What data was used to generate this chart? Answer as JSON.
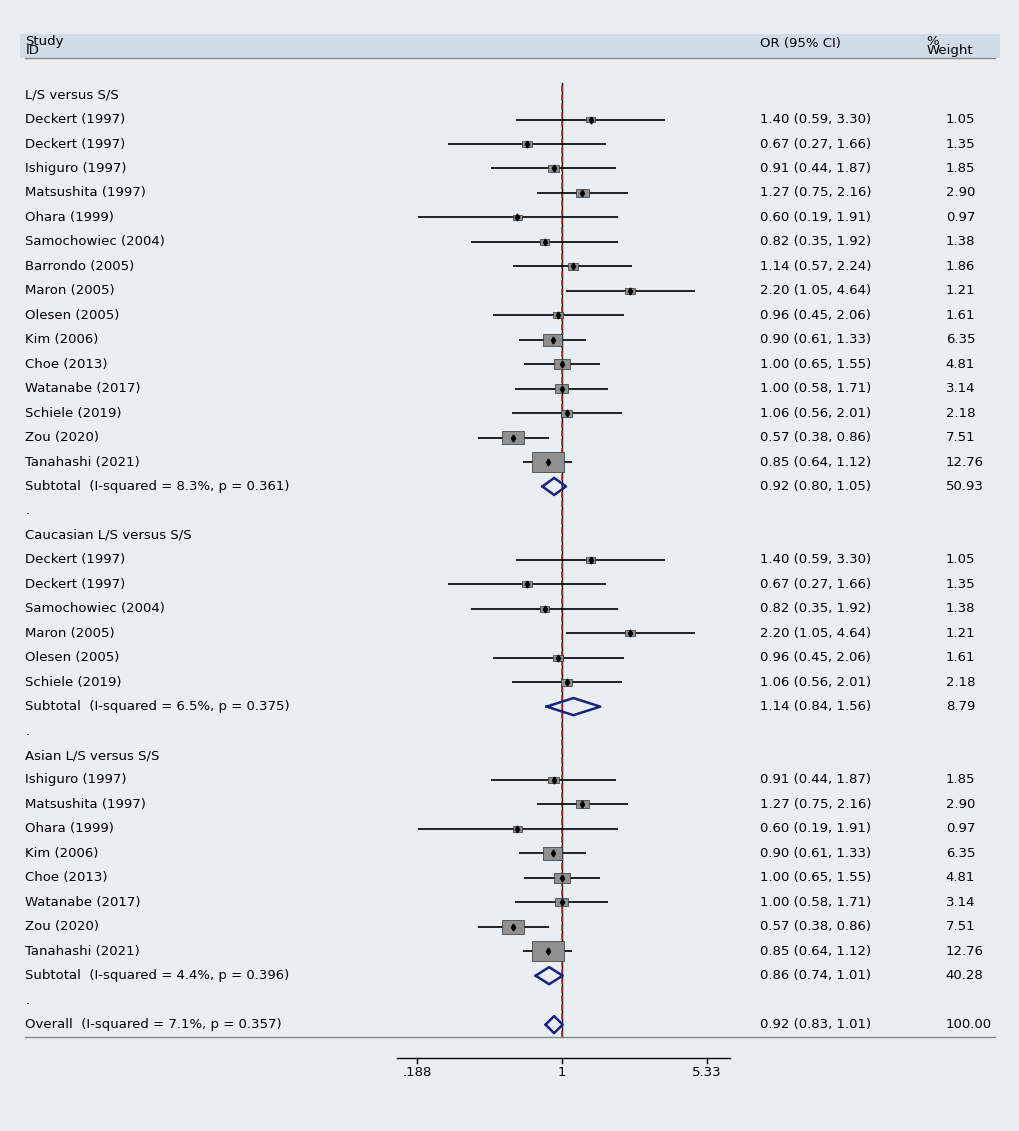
{
  "background_color": "#e8eef2",
  "sections": [
    {
      "header": "L/S versus S/S",
      "studies": [
        {
          "label": "Deckert (1997)",
          "or": 1.4,
          "ci_low": 0.59,
          "ci_high": 3.3,
          "weight": 1.05,
          "ci_str": "1.40 (0.59, 3.30)"
        },
        {
          "label": "Deckert (1997)",
          "or": 0.67,
          "ci_low": 0.27,
          "ci_high": 1.66,
          "weight": 1.35,
          "ci_str": "0.67 (0.27, 1.66)"
        },
        {
          "label": "Ishiguro (1997)",
          "or": 0.91,
          "ci_low": 0.44,
          "ci_high": 1.87,
          "weight": 1.85,
          "ci_str": "0.91 (0.44, 1.87)"
        },
        {
          "label": "Matsushita (1997)",
          "or": 1.27,
          "ci_low": 0.75,
          "ci_high": 2.16,
          "weight": 2.9,
          "ci_str": "1.27 (0.75, 2.16)"
        },
        {
          "label": "Ohara (1999)",
          "or": 0.6,
          "ci_low": 0.19,
          "ci_high": 1.91,
          "weight": 0.97,
          "ci_str": "0.60 (0.19, 1.91)"
        },
        {
          "label": "Samochowiec (2004)",
          "or": 0.82,
          "ci_low": 0.35,
          "ci_high": 1.92,
          "weight": 1.38,
          "ci_str": "0.82 (0.35, 1.92)"
        },
        {
          "label": "Barrondo (2005)",
          "or": 1.14,
          "ci_low": 0.57,
          "ci_high": 2.24,
          "weight": 1.86,
          "ci_str": "1.14 (0.57, 2.24)"
        },
        {
          "label": "Maron (2005)",
          "or": 2.2,
          "ci_low": 1.05,
          "ci_high": 4.64,
          "weight": 1.21,
          "ci_str": "2.20 (1.05, 4.64)"
        },
        {
          "label": "Olesen (2005)",
          "or": 0.96,
          "ci_low": 0.45,
          "ci_high": 2.06,
          "weight": 1.61,
          "ci_str": "0.96 (0.45, 2.06)"
        },
        {
          "label": "Kim (2006)",
          "or": 0.9,
          "ci_low": 0.61,
          "ci_high": 1.33,
          "weight": 6.35,
          "ci_str": "0.90 (0.61, 1.33)"
        },
        {
          "label": "Choe (2013)",
          "or": 1.0,
          "ci_low": 0.65,
          "ci_high": 1.55,
          "weight": 4.81,
          "ci_str": "1.00 (0.65, 1.55)"
        },
        {
          "label": "Watanabe (2017)",
          "or": 1.0,
          "ci_low": 0.58,
          "ci_high": 1.71,
          "weight": 3.14,
          "ci_str": "1.00 (0.58, 1.71)"
        },
        {
          "label": "Schiele (2019)",
          "or": 1.06,
          "ci_low": 0.56,
          "ci_high": 2.01,
          "weight": 2.18,
          "ci_str": "1.06 (0.56, 2.01)"
        },
        {
          "label": "Zou (2020)",
          "or": 0.57,
          "ci_low": 0.38,
          "ci_high": 0.86,
          "weight": 7.51,
          "ci_str": "0.57 (0.38, 0.86)"
        },
        {
          "label": "Tanahashi (2021)",
          "or": 0.85,
          "ci_low": 0.64,
          "ci_high": 1.12,
          "weight": 12.76,
          "ci_str": "0.85 (0.64, 1.12)"
        }
      ],
      "subtotal": {
        "or": 0.92,
        "ci_low": 0.8,
        "ci_high": 1.05,
        "weight": 50.93,
        "ci_str": "0.92 (0.80, 1.05)",
        "label": "Subtotal  (I-squared = 8.3%, p = 0.361)"
      }
    },
    {
      "header": "Caucasian L/S versus S/S",
      "studies": [
        {
          "label": "Deckert (1997)",
          "or": 1.4,
          "ci_low": 0.59,
          "ci_high": 3.3,
          "weight": 1.05,
          "ci_str": "1.40 (0.59, 3.30)"
        },
        {
          "label": "Deckert (1997)",
          "or": 0.67,
          "ci_low": 0.27,
          "ci_high": 1.66,
          "weight": 1.35,
          "ci_str": "0.67 (0.27, 1.66)"
        },
        {
          "label": "Samochowiec (2004)",
          "or": 0.82,
          "ci_low": 0.35,
          "ci_high": 1.92,
          "weight": 1.38,
          "ci_str": "0.82 (0.35, 1.92)"
        },
        {
          "label": "Maron (2005)",
          "or": 2.2,
          "ci_low": 1.05,
          "ci_high": 4.64,
          "weight": 1.21,
          "ci_str": "2.20 (1.05, 4.64)"
        },
        {
          "label": "Olesen (2005)",
          "or": 0.96,
          "ci_low": 0.45,
          "ci_high": 2.06,
          "weight": 1.61,
          "ci_str": "0.96 (0.45, 2.06)"
        },
        {
          "label": "Schiele (2019)",
          "or": 1.06,
          "ci_low": 0.56,
          "ci_high": 2.01,
          "weight": 2.18,
          "ci_str": "1.06 (0.56, 2.01)"
        }
      ],
      "subtotal": {
        "or": 1.14,
        "ci_low": 0.84,
        "ci_high": 1.56,
        "weight": 8.79,
        "ci_str": "1.14 (0.84, 1.56)",
        "label": "Subtotal  (I-squared = 6.5%, p = 0.375)"
      }
    },
    {
      "header": "Asian L/S versus S/S",
      "studies": [
        {
          "label": "Ishiguro (1997)",
          "or": 0.91,
          "ci_low": 0.44,
          "ci_high": 1.87,
          "weight": 1.85,
          "ci_str": "0.91 (0.44, 1.87)"
        },
        {
          "label": "Matsushita (1997)",
          "or": 1.27,
          "ci_low": 0.75,
          "ci_high": 2.16,
          "weight": 2.9,
          "ci_str": "1.27 (0.75, 2.16)"
        },
        {
          "label": "Ohara (1999)",
          "or": 0.6,
          "ci_low": 0.19,
          "ci_high": 1.91,
          "weight": 0.97,
          "ci_str": "0.60 (0.19, 1.91)"
        },
        {
          "label": "Kim (2006)",
          "or": 0.9,
          "ci_low": 0.61,
          "ci_high": 1.33,
          "weight": 6.35,
          "ci_str": "0.90 (0.61, 1.33)"
        },
        {
          "label": "Choe (2013)",
          "or": 1.0,
          "ci_low": 0.65,
          "ci_high": 1.55,
          "weight": 4.81,
          "ci_str": "1.00 (0.65, 1.55)"
        },
        {
          "label": "Watanabe (2017)",
          "or": 1.0,
          "ci_low": 0.58,
          "ci_high": 1.71,
          "weight": 3.14,
          "ci_str": "1.00 (0.58, 1.71)"
        },
        {
          "label": "Zou (2020)",
          "or": 0.57,
          "ci_low": 0.38,
          "ci_high": 0.86,
          "weight": 7.51,
          "ci_str": "0.57 (0.38, 0.86)"
        },
        {
          "label": "Tanahashi (2021)",
          "or": 0.85,
          "ci_low": 0.64,
          "ci_high": 1.12,
          "weight": 12.76,
          "ci_str": "0.85 (0.64, 1.12)"
        }
      ],
      "subtotal": {
        "or": 0.86,
        "ci_low": 0.74,
        "ci_high": 1.01,
        "weight": 40.28,
        "ci_str": "0.86 (0.74, 1.01)",
        "label": "Subtotal  (I-squared = 4.4%, p = 0.396)"
      }
    }
  ],
  "overall": {
    "or": 0.92,
    "ci_low": 0.83,
    "ci_high": 1.01,
    "weight": 100.0,
    "ci_str": "0.92 (0.83, 1.01)",
    "label": "Overall  (I-squared = 7.1%, p = 0.357)"
  },
  "x_ticks": [
    0.188,
    1.0,
    5.33
  ],
  "x_tick_labels": [
    ".188",
    "1",
    "5.33"
  ],
  "x_min": 0.15,
  "x_max": 7.0,
  "null_value": 1.0,
  "diamond_color": "#1a237e",
  "null_line_color": "#c62828",
  "square_color": "#808080",
  "text_fontsize": 9.5,
  "header_fontsize": 9.5
}
